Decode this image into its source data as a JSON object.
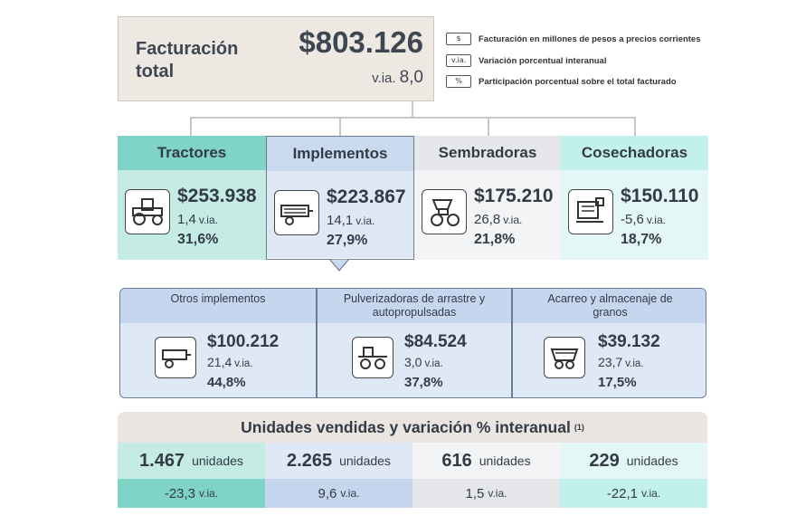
{
  "total": {
    "title": "Facturación total",
    "value": "$803.126",
    "via_label": "v.ia.",
    "via_value": "8,0"
  },
  "legend": [
    {
      "key": "$",
      "text": "Facturación en millones de pesos a precios corrientes"
    },
    {
      "key": "v.ia.",
      "text": "Variación porcentual interanual"
    },
    {
      "key": "%",
      "text": "Participación porcentual sobre el total facturado"
    }
  ],
  "colors": {
    "tractores_head": "#7fd3c7",
    "tractores_body": "#c5ebe5",
    "implementos_head": "#c9daef",
    "implementos_body": "#dfe9f6",
    "sembradoras_head": "#e6e7ea",
    "sembradoras_body": "#f3f4f6",
    "cosechadoras_head": "#c2f0ec",
    "cosechadoras_body": "#e3f8f6"
  },
  "categories": [
    {
      "name": "Tractores",
      "value": "$253.938",
      "via": "1,4",
      "via_label": "v.ia.",
      "pct": "31,6%",
      "icon": "tractor-icon"
    },
    {
      "name": "Implementos",
      "value": "$223.867",
      "via": "14,1",
      "via_label": "v.ia.",
      "pct": "27,9%",
      "icon": "implement-icon"
    },
    {
      "name": "Sembradoras",
      "value": "$175.210",
      "via": "26,8",
      "via_label": "v.ia.",
      "pct": "21,8%",
      "icon": "seeder-icon"
    },
    {
      "name": "Cosechadoras",
      "value": "$150.110",
      "via": "-5,6",
      "via_label": "v.ia.",
      "pct": "18,7%",
      "icon": "harvester-icon"
    }
  ],
  "sub_implements": [
    {
      "name": "Otros implementos",
      "value": "$100.212",
      "via": "21,4",
      "via_label": "v.ia.",
      "pct": "44,8%",
      "icon": "trailer-implement-icon"
    },
    {
      "name": "Pulverizadoras de arrastre y autopropulsadas",
      "value": "$84.524",
      "via": "3,0",
      "via_label": "v.ia.",
      "pct": "37,8%",
      "icon": "sprayer-icon"
    },
    {
      "name": "Acarreo y almacenaje de granos",
      "value": "$39.132",
      "via": "23,7",
      "via_label": "v.ia.",
      "pct": "17,5%",
      "icon": "grain-cart-icon"
    }
  ],
  "units": {
    "title": "Unidades vendidas y variación % interanual",
    "footnote": "(1)",
    "items": [
      {
        "count": "1.467",
        "unit_label": "unidades",
        "via": "-23,3",
        "via_label": "v.ia."
      },
      {
        "count": "2.265",
        "unit_label": "unidades",
        "via": "9,6",
        "via_label": "v.ia."
      },
      {
        "count": "616",
        "unit_label": "unidades",
        "via": "1,5",
        "via_label": "v.ia."
      },
      {
        "count": "229",
        "unit_label": "unidades",
        "via": "-22,1",
        "via_label": "v.ia."
      }
    ]
  }
}
